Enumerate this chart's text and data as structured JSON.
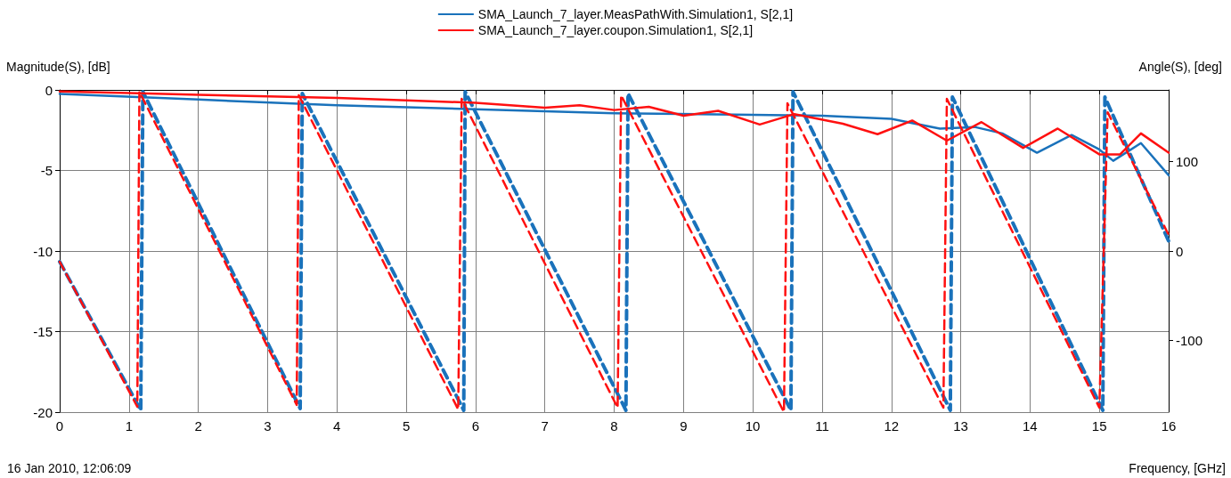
{
  "chart_data": {
    "type": "line",
    "xlabel": "Frequency, [GHz]",
    "ylabel": "Magnitude(S), [dB]",
    "y2label": "Angle(S), [deg]",
    "annotations": [
      "16 Jan 2010, 12:06:09"
    ],
    "xlim": [
      0,
      16
    ],
    "xticks": [
      0,
      1,
      2,
      3,
      4,
      5,
      6,
      7,
      8,
      9,
      10,
      11,
      12,
      13,
      14,
      15,
      16
    ],
    "ylim": [
      -20,
      0
    ],
    "yticks": [
      -20,
      -15,
      -10,
      -5,
      0
    ],
    "y2lim": [
      -180,
      180
    ],
    "y2ticks": [
      -100,
      0,
      100
    ],
    "grid": true,
    "legend": "top",
    "marker": "none",
    "series": [
      {
        "name": "SMA_Launch_7_layer.MeasPathWith.Simulation1, S[2,1]",
        "color": "#1a72bb",
        "line_style": "solid",
        "x": [
          0,
          2,
          4,
          6,
          8,
          10,
          11,
          12,
          12.7,
          13.2,
          13.6,
          14.1,
          14.6,
          15.0,
          15.2,
          15.6,
          16
        ],
        "values": [
          -0.25,
          -0.6,
          -0.95,
          -1.2,
          -1.45,
          -1.55,
          -1.6,
          -1.8,
          -2.4,
          -2.3,
          -2.7,
          -3.9,
          -2.8,
          -3.7,
          -4.4,
          -3.3,
          -5.3
        ]
      },
      {
        "color": "#1a72bb",
        "line_style": "dashed",
        "axis": "y2",
        "x": [
          0,
          1.17,
          1.2,
          3.47,
          3.5,
          5.83,
          5.85,
          8.17,
          8.2,
          10.55,
          10.58,
          12.85,
          12.88,
          15.05,
          15.08,
          16
        ],
        "values": [
          -12,
          -178,
          178,
          -176,
          176,
          -178,
          178,
          -178,
          176,
          -178,
          178,
          -178,
          172,
          -178,
          172,
          11
        ]
      },
      {
        "name": "SMA_Launch_7_layer.coupon.Simulation1, S[2,1]",
        "color": "#ff1010",
        "line_style": "solid",
        "x": [
          0,
          1,
          2,
          3,
          4,
          5,
          6,
          7,
          7.5,
          8,
          8.5,
          9,
          9.5,
          10.1,
          10.6,
          11.3,
          11.8,
          12.3,
          12.8,
          13.3,
          13.9,
          14.4,
          15,
          15.3,
          15.6,
          16
        ],
        "values": [
          -0.1,
          -0.2,
          -0.3,
          -0.4,
          -0.5,
          -0.65,
          -0.8,
          -1.1,
          -0.95,
          -1.25,
          -1.05,
          -1.6,
          -1.3,
          -2.15,
          -1.5,
          -2.1,
          -2.75,
          -1.9,
          -3.15,
          -2.0,
          -3.6,
          -2.4,
          -4.0,
          -4.0,
          -2.7,
          -3.9
        ]
      },
      {
        "color": "#ff1010",
        "line_style": "dashed",
        "axis": "y2",
        "x": [
          0,
          1.12,
          1.15,
          3.42,
          3.45,
          5.75,
          5.8,
          8.05,
          8.1,
          10.45,
          10.5,
          12.75,
          12.8,
          15.0,
          15.12,
          16
        ],
        "values": [
          -12,
          -174,
          178,
          -172,
          174,
          -177,
          170,
          -175,
          174,
          -180,
          165,
          -175,
          170,
          -175,
          155,
          18
        ]
      }
    ]
  }
}
